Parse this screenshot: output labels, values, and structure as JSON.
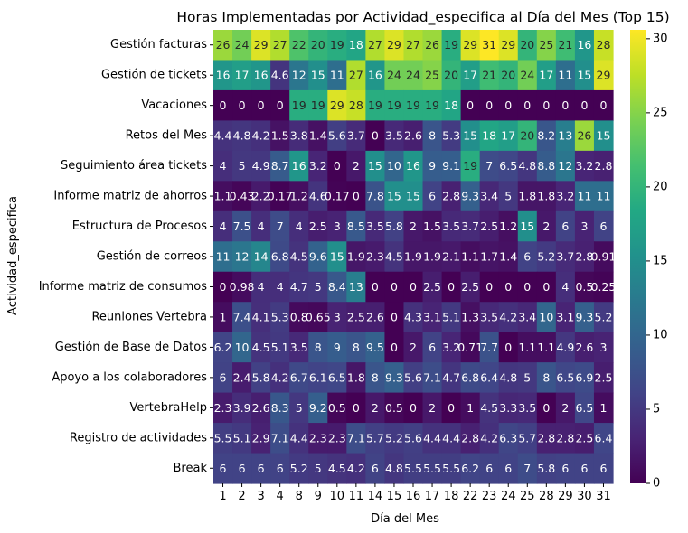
{
  "chart_data": {
    "type": "heatmap",
    "title": "Horas Implementadas por Actividad_especifica al Día del Mes (Top 15)",
    "xlabel": "Día del Mes",
    "ylabel": "Actividad_especifica",
    "colormap": "viridis",
    "colorbar": {
      "min": 0,
      "max": 30.6,
      "ticks": [
        0,
        5,
        10,
        15,
        20,
        25,
        30
      ]
    },
    "columns": [
      "1",
      "2",
      "3",
      "4",
      "8",
      "9",
      "10",
      "11",
      "14",
      "15",
      "16",
      "17",
      "18",
      "22",
      "23",
      "24",
      "25",
      "28",
      "29",
      "30",
      "31"
    ],
    "rows": [
      {
        "name": "Gestión facturas",
        "labels": [
          "26",
          "24",
          "29",
          "27",
          "22",
          "20",
          "19",
          "18",
          "27",
          "29",
          "27",
          "26",
          "19",
          "29",
          "31",
          "29",
          "20",
          "25",
          "21",
          "16",
          "28"
        ],
        "values": [
          26,
          24,
          29,
          27,
          22,
          20,
          19,
          18,
          27,
          29,
          27,
          26,
          19,
          29,
          31,
          29,
          20,
          25,
          21,
          16,
          28
        ]
      },
      {
        "name": "Gestión de tickets",
        "labels": [
          "16",
          "17",
          "16",
          "4.6",
          "12",
          "15",
          "11",
          "27",
          "16",
          "24",
          "24",
          "25",
          "20",
          "17",
          "21",
          "20",
          "24",
          "17",
          "11",
          "15",
          "29"
        ],
        "values": [
          16,
          17,
          16,
          4.6,
          12,
          15,
          11,
          27,
          16,
          24,
          24,
          25,
          20,
          17,
          21,
          20,
          24,
          17,
          11,
          15,
          29
        ]
      },
      {
        "name": "Vacaciones",
        "labels": [
          "0",
          "0",
          "0",
          "0",
          "19",
          "19",
          "29",
          "28",
          "19",
          "19",
          "19",
          "19",
          "18",
          "0",
          "0",
          "0",
          "0",
          "0",
          "0",
          "0",
          "0"
        ],
        "values": [
          0,
          0,
          0,
          0,
          19,
          19,
          29,
          28,
          19,
          19,
          19,
          19,
          18,
          0,
          0,
          0,
          0,
          0,
          0,
          0,
          0
        ]
      },
      {
        "name": "Retos del Mes",
        "labels": [
          "4.4",
          "4.8",
          "4.2",
          "1.5",
          "3.8",
          "1.4",
          "5.6",
          "3.7",
          "0",
          "3.5",
          "2.6",
          "8",
          "5.3",
          "15",
          "18",
          "17",
          "20",
          "8.2",
          "13",
          "26",
          "15"
        ],
        "values": [
          4.4,
          4.8,
          4.2,
          1.5,
          3.8,
          1.4,
          5.6,
          3.7,
          0,
          3.5,
          2.6,
          8,
          5.3,
          15,
          18,
          17,
          20,
          8.2,
          13,
          26,
          15
        ]
      },
      {
        "name": "Seguimiento área tickets",
        "labels": [
          "4",
          "5",
          "4.9",
          "8.7",
          "16",
          "3.2",
          "0",
          "2",
          "15",
          "10",
          "16",
          "9",
          "9.1",
          "19",
          "7",
          "6.5",
          "4.8",
          "8.8",
          "12",
          "3.2",
          "2.8"
        ],
        "values": [
          4,
          5,
          4.9,
          8.7,
          16,
          3.2,
          0,
          2,
          15,
          10,
          16,
          9,
          9.1,
          19,
          7,
          6.5,
          4.8,
          8.8,
          12,
          3.2,
          2.8
        ]
      },
      {
        "name": "Informe matriz de ahorros",
        "labels": [
          "1.1",
          "0.43",
          "2.2",
          "0.17",
          "1.2",
          "4.6",
          "0.17",
          "0",
          "7.8",
          "15",
          "15",
          "6",
          "2.8",
          "9.3",
          "3.4",
          "5",
          "1.8",
          "1.8",
          "3.2",
          "11",
          "11"
        ],
        "values": [
          1.1,
          0.43,
          2.2,
          0.17,
          1.2,
          4.6,
          0.17,
          0,
          7.8,
          15,
          15,
          6,
          2.8,
          9.3,
          3.4,
          5,
          1.8,
          1.8,
          3.2,
          11,
          11
        ]
      },
      {
        "name": "Estructura de Procesos",
        "labels": [
          "4",
          "7.5",
          "4",
          "7",
          "4",
          "2.5",
          "3",
          "8.5",
          "3.5",
          "5.8",
          "2",
          "1.5",
          "3.5",
          "3.7",
          "2.5",
          "1.2",
          "15",
          "2",
          "6",
          "3",
          "6"
        ],
        "values": [
          4,
          7.5,
          4,
          7,
          4,
          2.5,
          3,
          8.5,
          3.5,
          5.8,
          2,
          1.5,
          3.5,
          3.7,
          2.5,
          1.2,
          15,
          2,
          6,
          3,
          6
        ]
      },
      {
        "name": "Gestión de correos",
        "labels": [
          "11",
          "12",
          "14",
          "6.8",
          "4.5",
          "9.6",
          "15",
          "1.9",
          "2.3",
          "4.5",
          "1.9",
          "1.9",
          "2.1",
          "1.1",
          "1.7",
          "1.4",
          "6",
          "5.2",
          "3.7",
          "2.8",
          "0.91"
        ],
        "values": [
          11,
          12,
          14,
          6.8,
          4.5,
          9.6,
          15,
          1.9,
          2.3,
          4.5,
          1.9,
          1.9,
          2.1,
          1.1,
          1.7,
          1.4,
          6,
          5.2,
          3.7,
          2.8,
          0.91
        ]
      },
      {
        "name": "Informe matriz de consumos",
        "labels": [
          "0",
          "0.98",
          "4",
          "4",
          "4.7",
          "5",
          "8.4",
          "13",
          "0",
          "0",
          "0",
          "2.5",
          "0",
          "2.5",
          "0",
          "0",
          "0",
          "0",
          "4",
          "0.5",
          "0.25"
        ],
        "values": [
          0,
          0.98,
          4,
          4,
          4.7,
          5,
          8.4,
          13,
          0,
          0,
          0,
          2.5,
          0,
          2.5,
          0,
          0,
          0,
          0,
          4,
          0.5,
          0.25
        ]
      },
      {
        "name": "Reuniones Vertebra",
        "labels": [
          "1",
          "7.4",
          "4.1",
          "5.3",
          "0.8",
          "0.65",
          "3",
          "2.5",
          "2.6",
          "0",
          "4.3",
          "3.1",
          "5.1",
          "1.3",
          "3.5",
          "4.2",
          "3.4",
          "10",
          "3.1",
          "9.3",
          "5.2"
        ],
        "values": [
          1,
          7.4,
          4.1,
          5.3,
          0.8,
          0.65,
          3,
          2.5,
          2.6,
          0,
          4.3,
          3.1,
          5.1,
          1.3,
          3.5,
          4.2,
          3.4,
          10,
          3.1,
          9.3,
          5.2
        ]
      },
      {
        "name": "Gestión de Base de Datos",
        "labels": [
          "6.2",
          "10",
          "4.5",
          "5.1",
          "3.5",
          "8",
          "9",
          "8",
          "9.5",
          "0",
          "2",
          "6",
          "3.2",
          "0.71",
          "7.7",
          "0",
          "1.1",
          "1.1",
          "4.9",
          "2.6",
          "3"
        ],
        "values": [
          6.2,
          10,
          4.5,
          5.1,
          3.5,
          8,
          9,
          8,
          9.5,
          0,
          2,
          6,
          3.2,
          0.71,
          7.7,
          0,
          1.1,
          1.1,
          4.9,
          2.6,
          3
        ]
      },
      {
        "name": "Apoyo a los colaboradores",
        "labels": [
          "6",
          "2.4",
          "5.8",
          "4.2",
          "6.7",
          "6.1",
          "6.5",
          "1.8",
          "8",
          "9.3",
          "5.6",
          "7.1",
          "4.7",
          "6.8",
          "6.4",
          "4.8",
          "5",
          "8",
          "6.5",
          "6.9",
          "2.5"
        ],
        "values": [
          6,
          2.4,
          5.8,
          4.2,
          6.7,
          6.1,
          6.5,
          1.8,
          8,
          9.3,
          5.6,
          7.1,
          4.7,
          6.8,
          6.4,
          4.8,
          5,
          8,
          6.5,
          6.9,
          2.5
        ]
      },
      {
        "name": "VertebraHelp",
        "labels": [
          "2.3",
          "3.9",
          "2.6",
          "8.3",
          "5",
          "9.2",
          "0.5",
          "0",
          "2",
          "0.5",
          "0",
          "2",
          "0",
          "1",
          "4.5",
          "3.3",
          "3.5",
          "0",
          "2",
          "6.5",
          "1"
        ],
        "values": [
          2.3,
          3.9,
          2.6,
          8.3,
          5,
          9.2,
          0.5,
          0,
          2,
          0.5,
          0,
          2,
          0,
          1,
          4.5,
          3.3,
          3.5,
          0,
          2,
          6.5,
          1
        ]
      },
      {
        "name": "Registro de actividades",
        "labels": [
          "5.5",
          "5.1",
          "2.9",
          "7.1",
          "4.4",
          "2.3",
          "2.3",
          "7.1",
          "5.7",
          "5.2",
          "5.6",
          "4.4",
          "4.4",
          "2.8",
          "4.2",
          "6.3",
          "5.7",
          "2.8",
          "2.8",
          "2.5",
          "6.4"
        ],
        "values": [
          5.5,
          5.1,
          2.9,
          7.1,
          4.4,
          2.3,
          2.3,
          7.1,
          5.7,
          5.2,
          5.6,
          4.4,
          4.4,
          2.8,
          4.2,
          6.3,
          5.7,
          2.8,
          2.8,
          2.5,
          6.4
        ]
      },
      {
        "name": "Break",
        "labels": [
          "6",
          "6",
          "6",
          "6",
          "5.2",
          "5",
          "4.5",
          "4.2",
          "6",
          "4.8",
          "5.5",
          "5.5",
          "5.5",
          "6.2",
          "6",
          "6",
          "7",
          "5.8",
          "6",
          "6",
          "6"
        ],
        "values": [
          6,
          6,
          6,
          6,
          5.2,
          5,
          4.5,
          4.2,
          6,
          4.8,
          5.5,
          5.5,
          5.5,
          6.2,
          6,
          6,
          7,
          5.8,
          6,
          6,
          6
        ]
      }
    ]
  }
}
